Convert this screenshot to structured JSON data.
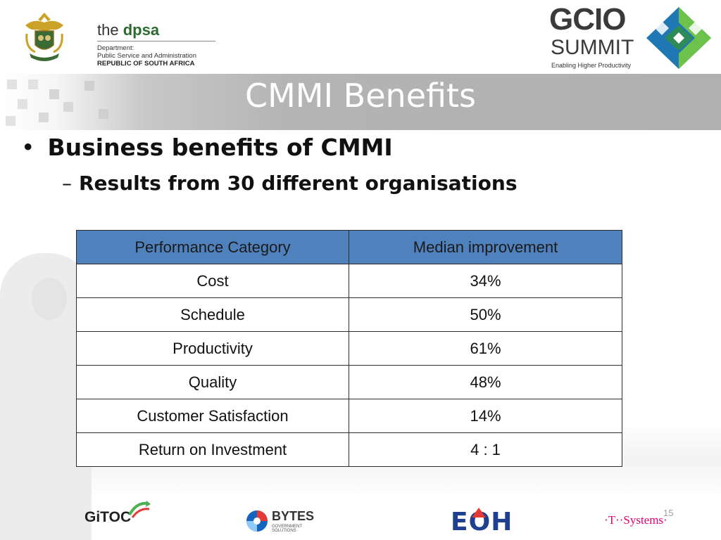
{
  "header": {
    "dpsa_logo": {
      "the": "the",
      "name": "dpsa",
      "line1": "Department:",
      "line2": "Public Service and Administration",
      "line3": "REPUBLIC OF SOUTH AFRICA"
    },
    "gcio_logo": {
      "word1": "GCIO",
      "word2": "SUMMIT",
      "tagline": "Enabling Higher Productivity",
      "colors": [
        "#1f78b4",
        "#6cc24a",
        "#2e8b57",
        "#ffffff"
      ]
    }
  },
  "slide": {
    "title": "CMMI Benefits",
    "bullet_main": "Business benefits of CMMI",
    "bullet_sub": "Results from 30 different organisations",
    "slide_number": "15"
  },
  "table": {
    "headers": [
      "Performance Category",
      "Median improvement"
    ],
    "rows": [
      [
        "Cost",
        "34%"
      ],
      [
        "Schedule",
        "50%"
      ],
      [
        "Productivity",
        "61%"
      ],
      [
        "Quality",
        "48%"
      ],
      [
        "Customer Satisfaction",
        "14%"
      ],
      [
        "Return on Investment",
        "4 : 1"
      ]
    ],
    "header_color": "#4f81bd"
  },
  "footer": {
    "gitoc": "GiTOC",
    "bytes": "BYTES",
    "bytes_sub": "GOVERNMENT SOLUTIONS",
    "eoh": "EOH",
    "tsystems": "·T··Systems·"
  }
}
